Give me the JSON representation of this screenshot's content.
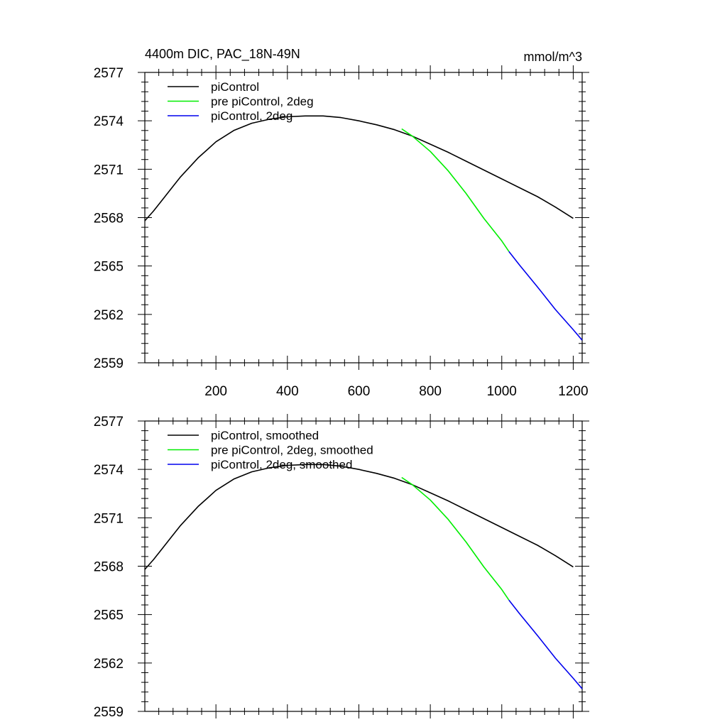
{
  "figure": {
    "title_left": "4400m DIC, PAC_18N-49N",
    "title_right": "mmol/m^3"
  },
  "chart_data": [
    {
      "type": "line",
      "title": "4400m DIC, PAC_18N-49N",
      "units": "mmol/m^3",
      "xlabel": "",
      "ylabel": "",
      "xlim": [
        1,
        1225
      ],
      "ylim": [
        2559,
        2577
      ],
      "x_ticks": [
        200,
        400,
        600,
        800,
        1000,
        1200
      ],
      "y_ticks": [
        2559,
        2562,
        2565,
        2568,
        2571,
        2574,
        2577
      ],
      "show_x_tick_labels": true,
      "legend_position": "top-left",
      "grid": false,
      "series": [
        {
          "name": "piControl",
          "color": "#000000",
          "x": [
            1,
            25,
            50,
            75,
            100,
            125,
            150,
            175,
            200,
            250,
            300,
            350,
            400,
            450,
            500,
            550,
            600,
            650,
            700,
            750,
            800,
            850,
            900,
            950,
            1000,
            1050,
            1100,
            1150,
            1200
          ],
          "y": [
            2567.8,
            2568.4,
            2569.1,
            2569.8,
            2570.5,
            2571.1,
            2571.7,
            2572.2,
            2572.7,
            2573.4,
            2573.85,
            2574.1,
            2574.25,
            2574.3,
            2574.3,
            2574.2,
            2574.0,
            2573.75,
            2573.45,
            2573.05,
            2572.55,
            2572.05,
            2571.5,
            2570.95,
            2570.4,
            2569.85,
            2569.3,
            2568.65,
            2567.95
          ]
        },
        {
          "name": "pre piControl, 2deg",
          "color": "#00ee00",
          "x": [
            720,
            750,
            800,
            850,
            900,
            950,
            1000,
            1020
          ],
          "y": [
            2573.5,
            2573.05,
            2572.1,
            2570.9,
            2569.5,
            2567.95,
            2566.55,
            2565.9
          ]
        },
        {
          "name": "piControl, 2deg",
          "color": "#0000ee",
          "x": [
            1020,
            1050,
            1100,
            1150,
            1200,
            1225
          ],
          "y": [
            2565.9,
            2565.05,
            2563.7,
            2562.3,
            2561.05,
            2560.4
          ]
        }
      ]
    },
    {
      "type": "line",
      "title": "",
      "xlabel": "",
      "ylabel": "",
      "xlim": [
        1,
        1225
      ],
      "ylim": [
        2559,
        2577
      ],
      "x_ticks": [
        200,
        400,
        600,
        800,
        1000,
        1200
      ],
      "y_ticks": [
        2559,
        2562,
        2565,
        2568,
        2571,
        2574,
        2577
      ],
      "show_x_tick_labels": false,
      "legend_position": "top-left",
      "grid": false,
      "series": [
        {
          "name": "piControl, smoothed",
          "color": "#000000",
          "x": [
            1,
            25,
            50,
            75,
            100,
            125,
            150,
            175,
            200,
            250,
            300,
            350,
            400,
            450,
            500,
            550,
            600,
            650,
            700,
            750,
            800,
            850,
            900,
            950,
            1000,
            1050,
            1100,
            1150,
            1200
          ],
          "y": [
            2567.8,
            2568.4,
            2569.1,
            2569.8,
            2570.5,
            2571.1,
            2571.7,
            2572.2,
            2572.7,
            2573.4,
            2573.85,
            2574.1,
            2574.25,
            2574.3,
            2574.3,
            2574.2,
            2574.0,
            2573.75,
            2573.45,
            2573.05,
            2572.55,
            2572.05,
            2571.5,
            2570.95,
            2570.4,
            2569.85,
            2569.3,
            2568.65,
            2567.95
          ]
        },
        {
          "name": "pre piControl, 2deg, smoothed",
          "color": "#00ee00",
          "x": [
            720,
            750,
            800,
            850,
            900,
            950,
            1000,
            1020
          ],
          "y": [
            2573.5,
            2573.05,
            2572.1,
            2570.9,
            2569.5,
            2567.95,
            2566.55,
            2565.9
          ]
        },
        {
          "name": "piControl, 2deg, smoothed",
          "color": "#0000ee",
          "x": [
            1020,
            1050,
            1100,
            1150,
            1200,
            1225
          ],
          "y": [
            2565.9,
            2565.05,
            2563.7,
            2562.3,
            2561.05,
            2560.4
          ]
        }
      ]
    }
  ]
}
